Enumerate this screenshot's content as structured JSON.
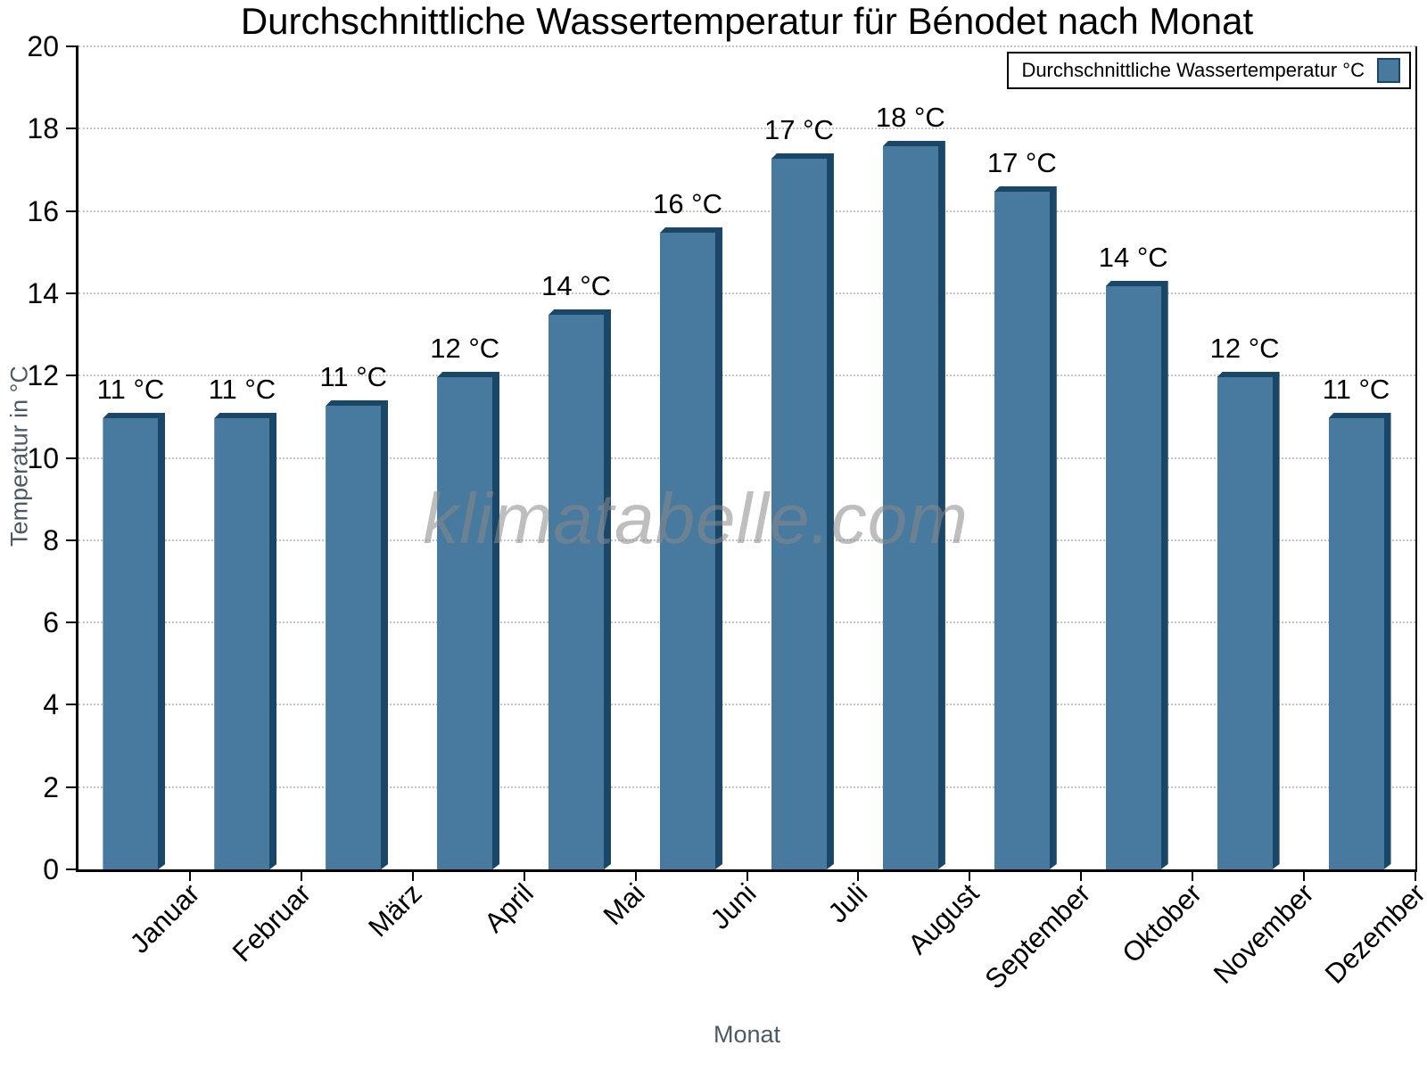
{
  "watermark": "klimatabelle.com",
  "chart_data": {
    "type": "bar",
    "title": "Durchschnittliche Wassertemperatur für Bénodet nach Monat",
    "xlabel": "Monat",
    "ylabel": "Temperatur in °C",
    "legend_label": "Durchschnittliche Wassertemperatur °C",
    "legend_position": "top-right",
    "categories": [
      "Januar",
      "Februar",
      "März",
      "April",
      "Mai",
      "Juni",
      "Juli",
      "August",
      "September",
      "Oktober",
      "November",
      "Dezember"
    ],
    "values": [
      11.1,
      11.1,
      11.4,
      12.1,
      13.6,
      15.6,
      17.4,
      17.7,
      16.6,
      14.3,
      12.1,
      11.1
    ],
    "bar_labels": [
      "11 °C",
      "11 °C",
      "11 °C",
      "12 °C",
      "14 °C",
      "16 °C",
      "17 °C",
      "18 °C",
      "17 °C",
      "14 °C",
      "12 °C",
      "11 °C"
    ],
    "ylim": [
      0,
      20
    ],
    "ytick_step": 2,
    "grid": true,
    "colors": {
      "bar_face": "#48799E",
      "bar_edge": "#1A4668",
      "gridline": "#C4C4C4",
      "axis_title": "#4C5A66",
      "watermark": "#8A8A8A"
    }
  }
}
